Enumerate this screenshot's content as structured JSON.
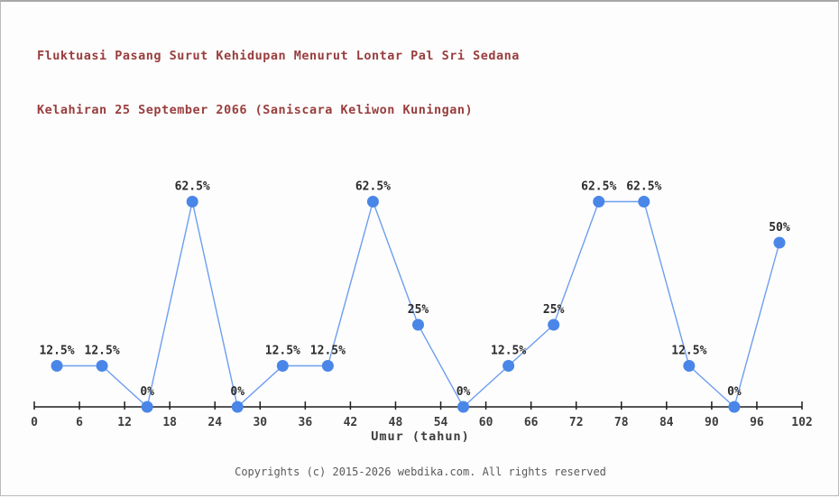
{
  "title": {
    "line1": "Fluktuasi Pasang Surut Kehidupan Menurut Lontar Pal Sri Sedana",
    "line2": "Kelahiran 25 September 2066 (Saniscara Keliwon Kuningan)"
  },
  "chart_data": {
    "type": "line",
    "x": [
      3,
      9,
      15,
      21,
      27,
      33,
      39,
      45,
      51,
      57,
      63,
      69,
      75,
      81,
      87,
      93,
      99
    ],
    "values": [
      12.5,
      12.5,
      0,
      62.5,
      0,
      12.5,
      12.5,
      62.5,
      25,
      0,
      12.5,
      25,
      62.5,
      62.5,
      12.5,
      0,
      50
    ],
    "point_labels": [
      "12.5%",
      "12.5%",
      "0%",
      "62.5%",
      "0%",
      "12.5%",
      "12.5%",
      "62.5%",
      "25%",
      "0%",
      "12.5%",
      "25%",
      "62.5%",
      "62.5%",
      "12.5%",
      "0%",
      "50%"
    ],
    "x_ticks": [
      0,
      6,
      12,
      18,
      24,
      30,
      36,
      42,
      48,
      54,
      60,
      66,
      72,
      78,
      84,
      90,
      96,
      102
    ],
    "xlabel": "Umur (tahun)",
    "xlim": [
      0,
      102
    ],
    "ylim": [
      0,
      100
    ],
    "grid": false,
    "legend": "none",
    "colors": {
      "line": "#6d9eef",
      "point": "#4a86e8",
      "axis": "#1f1f1f",
      "tick_label": "#3c3c3c",
      "point_label": "#2b2b2b",
      "title": "#993d3d",
      "footer": "#5a5a5a"
    }
  },
  "footer": {
    "copyright": "Copyrights (c) 2015-2026 webdika.com. All rights reserved"
  }
}
